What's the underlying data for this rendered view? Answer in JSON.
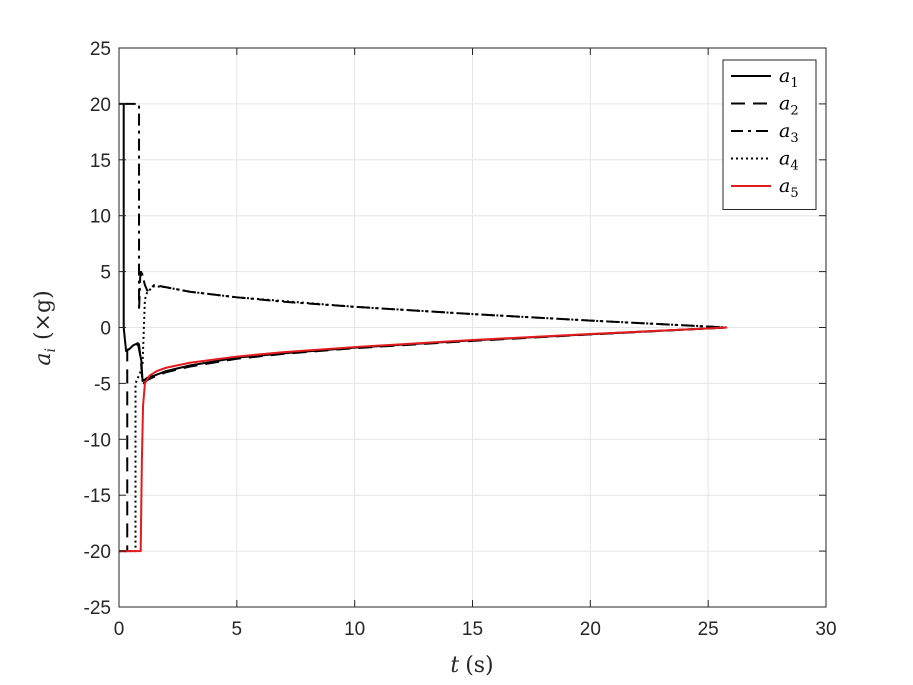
{
  "chart_data": {
    "type": "line",
    "title": "",
    "xlabel": {
      "var": "t",
      "unit": "(s)"
    },
    "ylabel": {
      "var": "a",
      "sub": "i",
      "unit": "(×g)"
    },
    "xlim": [
      0,
      30
    ],
    "ylim": [
      -25,
      25
    ],
    "xticks": [
      "0",
      "5",
      "10",
      "15",
      "20",
      "25",
      "30"
    ],
    "yticks": [
      "25",
      "20",
      "15",
      "10",
      "5",
      "0",
      "-5",
      "-10",
      "-15",
      "-20",
      "-25"
    ],
    "grid": true,
    "legend_position": "top-right",
    "series": [
      {
        "name": "a1",
        "label_base": "a",
        "label_sub": "1",
        "style": "solid",
        "color": "#000000",
        "points": [
          [
            0,
            20
          ],
          [
            0.2,
            20
          ],
          [
            0.2,
            0
          ],
          [
            0.3,
            -2.1
          ],
          [
            0.45,
            -1.9
          ],
          [
            0.6,
            -1.6
          ],
          [
            0.8,
            -1.4
          ],
          [
            0.95,
            -3
          ],
          [
            1.0,
            -4.8
          ],
          [
            1.2,
            -4.5
          ],
          [
            1.5,
            -4.3
          ],
          [
            2,
            -3.9
          ],
          [
            3,
            -3.4
          ],
          [
            5,
            -2.7
          ],
          [
            7,
            -2.3
          ],
          [
            10,
            -1.8
          ],
          [
            15,
            -1.15
          ],
          [
            20,
            -0.6
          ],
          [
            25.8,
            0
          ]
        ]
      },
      {
        "name": "a2",
        "label_base": "a",
        "label_sub": "2",
        "style": "dashed",
        "color": "#000000",
        "points": [
          [
            0,
            -20
          ],
          [
            0.35,
            -20
          ],
          [
            0.35,
            -2
          ],
          [
            0.5,
            -1.9
          ],
          [
            0.7,
            -1.6
          ],
          [
            0.85,
            -1.5
          ],
          [
            0.95,
            -3.5
          ],
          [
            1.0,
            -5.1
          ],
          [
            1.2,
            -4.7
          ],
          [
            1.5,
            -4.4
          ],
          [
            2,
            -4.0
          ],
          [
            3,
            -3.5
          ],
          [
            5,
            -2.8
          ],
          [
            7,
            -2.35
          ],
          [
            10,
            -1.85
          ],
          [
            15,
            -1.2
          ],
          [
            20,
            -0.62
          ],
          [
            25.8,
            0
          ]
        ]
      },
      {
        "name": "a3",
        "label_base": "a",
        "label_sub": "3",
        "style": "dashdot",
        "color": "#000000",
        "points": [
          [
            0.2,
            20
          ],
          [
            0.85,
            20
          ],
          [
            0.85,
            1.5
          ],
          [
            0.9,
            4.5
          ],
          [
            0.95,
            5.2
          ],
          [
            1.0,
            4.6
          ],
          [
            1.1,
            3.8
          ],
          [
            1.2,
            3.3
          ],
          [
            1.5,
            3.8
          ],
          [
            2,
            3.6
          ],
          [
            3,
            3.2
          ],
          [
            5,
            2.7
          ],
          [
            7,
            2.3
          ],
          [
            10,
            1.85
          ],
          [
            15,
            1.2
          ],
          [
            20,
            0.62
          ],
          [
            25.8,
            0
          ]
        ]
      },
      {
        "name": "a4",
        "label_base": "a",
        "label_sub": "4",
        "style": "dotted",
        "color": "#000000",
        "points": [
          [
            0,
            -20
          ],
          [
            0.7,
            -20
          ],
          [
            0.7,
            -5
          ],
          [
            0.8,
            -4.5
          ],
          [
            0.9,
            -4.0
          ],
          [
            1.0,
            -3.2
          ],
          [
            1.1,
            2.5
          ],
          [
            1.2,
            3.2
          ],
          [
            1.5,
            3.7
          ],
          [
            2,
            3.6
          ],
          [
            3,
            3.2
          ],
          [
            5,
            2.7
          ],
          [
            10,
            1.85
          ],
          [
            15,
            1.2
          ],
          [
            20,
            0.62
          ],
          [
            25.8,
            0
          ]
        ]
      },
      {
        "name": "a5",
        "label_base": "a",
        "label_sub": "5",
        "style": "solid",
        "color": "#e41a1c",
        "points": [
          [
            0,
            -20
          ],
          [
            0.92,
            -20
          ],
          [
            0.97,
            -12
          ],
          [
            1.02,
            -7
          ],
          [
            1.1,
            -5.0
          ],
          [
            1.3,
            -4.3
          ],
          [
            1.6,
            -3.9
          ],
          [
            2,
            -3.6
          ],
          [
            3,
            -3.15
          ],
          [
            5,
            -2.6
          ],
          [
            7,
            -2.2
          ],
          [
            10,
            -1.75
          ],
          [
            15,
            -1.12
          ],
          [
            20,
            -0.58
          ],
          [
            25.8,
            0
          ]
        ]
      }
    ]
  }
}
